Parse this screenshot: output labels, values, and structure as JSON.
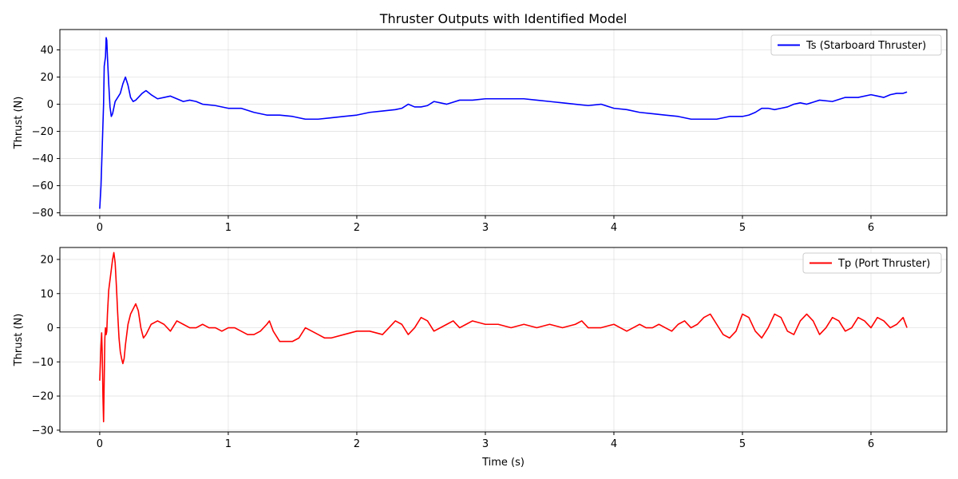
{
  "chart_data": [
    {
      "type": "line",
      "title": "Thruster Outputs with Identified Model",
      "xlabel": "",
      "ylabel": "Thrust (N)",
      "xlim": [
        -0.31,
        6.59
      ],
      "ylim": [
        -82,
        55
      ],
      "xticks": [
        0,
        1,
        2,
        3,
        4,
        5,
        6
      ],
      "yticks": [
        -80,
        -60,
        -40,
        -20,
        0,
        20,
        40
      ],
      "grid": true,
      "legend_position": "top-right",
      "series": [
        {
          "name": "Ts (Starboard Thruster)",
          "color": "#0000ff",
          "points": [
            [
              0.0,
              -77
            ],
            [
              0.01,
              -60
            ],
            [
              0.02,
              -30
            ],
            [
              0.03,
              0
            ],
            [
              0.035,
              28
            ],
            [
              0.045,
              35
            ],
            [
              0.05,
              49
            ],
            [
              0.055,
              47
            ],
            [
              0.06,
              35
            ],
            [
              0.07,
              15
            ],
            [
              0.08,
              -2
            ],
            [
              0.09,
              -9
            ],
            [
              0.1,
              -7
            ],
            [
              0.12,
              2
            ],
            [
              0.14,
              5
            ],
            [
              0.16,
              8
            ],
            [
              0.18,
              15
            ],
            [
              0.2,
              20
            ],
            [
              0.22,
              14
            ],
            [
              0.24,
              5
            ],
            [
              0.26,
              2
            ],
            [
              0.28,
              3
            ],
            [
              0.3,
              5
            ],
            [
              0.33,
              8
            ],
            [
              0.36,
              10
            ],
            [
              0.4,
              7
            ],
            [
              0.45,
              4
            ],
            [
              0.5,
              5
            ],
            [
              0.55,
              6
            ],
            [
              0.6,
              4
            ],
            [
              0.65,
              2
            ],
            [
              0.7,
              3
            ],
            [
              0.75,
              2
            ],
            [
              0.8,
              0
            ],
            [
              0.9,
              -1
            ],
            [
              1.0,
              -3
            ],
            [
              1.1,
              -3
            ],
            [
              1.2,
              -6
            ],
            [
              1.3,
              -8
            ],
            [
              1.4,
              -8
            ],
            [
              1.5,
              -9
            ],
            [
              1.6,
              -11
            ],
            [
              1.7,
              -11
            ],
            [
              1.8,
              -10
            ],
            [
              1.9,
              -9
            ],
            [
              2.0,
              -8
            ],
            [
              2.1,
              -6
            ],
            [
              2.2,
              -5
            ],
            [
              2.3,
              -4
            ],
            [
              2.35,
              -3
            ],
            [
              2.4,
              0
            ],
            [
              2.45,
              -2
            ],
            [
              2.5,
              -2
            ],
            [
              2.55,
              -1
            ],
            [
              2.6,
              2
            ],
            [
              2.65,
              1
            ],
            [
              2.7,
              0
            ],
            [
              2.8,
              3
            ],
            [
              2.9,
              3
            ],
            [
              3.0,
              4
            ],
            [
              3.1,
              4
            ],
            [
              3.2,
              4
            ],
            [
              3.3,
              4
            ],
            [
              3.4,
              3
            ],
            [
              3.5,
              2
            ],
            [
              3.6,
              1
            ],
            [
              3.7,
              0
            ],
            [
              3.8,
              -1
            ],
            [
              3.9,
              0
            ],
            [
              4.0,
              -3
            ],
            [
              4.1,
              -4
            ],
            [
              4.2,
              -6
            ],
            [
              4.3,
              -7
            ],
            [
              4.4,
              -8
            ],
            [
              4.5,
              -9
            ],
            [
              4.6,
              -11
            ],
            [
              4.7,
              -11
            ],
            [
              4.8,
              -11
            ],
            [
              4.9,
              -9
            ],
            [
              5.0,
              -9
            ],
            [
              5.05,
              -8
            ],
            [
              5.1,
              -6
            ],
            [
              5.15,
              -3
            ],
            [
              5.2,
              -3
            ],
            [
              5.25,
              -4
            ],
            [
              5.3,
              -3
            ],
            [
              5.35,
              -2
            ],
            [
              5.4,
              0
            ],
            [
              5.45,
              1
            ],
            [
              5.5,
              0
            ],
            [
              5.6,
              3
            ],
            [
              5.7,
              2
            ],
            [
              5.8,
              5
            ],
            [
              5.9,
              5
            ],
            [
              6.0,
              7
            ],
            [
              6.05,
              6
            ],
            [
              6.1,
              5
            ],
            [
              6.15,
              7
            ],
            [
              6.2,
              8
            ],
            [
              6.25,
              8
            ],
            [
              6.28,
              9
            ]
          ]
        }
      ]
    },
    {
      "type": "line",
      "title": "",
      "xlabel": "Time (s)",
      "ylabel": "Thrust (N)",
      "xlim": [
        -0.31,
        6.59
      ],
      "ylim": [
        -30.5,
        23.5
      ],
      "xticks": [
        0,
        1,
        2,
        3,
        4,
        5,
        6
      ],
      "yticks": [
        -30,
        -20,
        -10,
        0,
        10,
        20
      ],
      "grid": true,
      "legend_position": "top-right",
      "series": [
        {
          "name": "Tp (Port Thruster)",
          "color": "#ff0000",
          "points": [
            [
              0.0,
              -15.5
            ],
            [
              0.01,
              -5
            ],
            [
              0.015,
              -1.5
            ],
            [
              0.02,
              -8
            ],
            [
              0.025,
              -20
            ],
            [
              0.03,
              -27.5
            ],
            [
              0.035,
              -15
            ],
            [
              0.04,
              -3
            ],
            [
              0.045,
              0
            ],
            [
              0.05,
              -2
            ],
            [
              0.055,
              -1
            ],
            [
              0.06,
              4
            ],
            [
              0.07,
              11
            ],
            [
              0.08,
              14
            ],
            [
              0.09,
              17
            ],
            [
              0.1,
              20
            ],
            [
              0.11,
              22
            ],
            [
              0.12,
              19
            ],
            [
              0.13,
              12
            ],
            [
              0.14,
              4
            ],
            [
              0.15,
              -3
            ],
            [
              0.16,
              -7
            ],
            [
              0.17,
              -9
            ],
            [
              0.18,
              -10.5
            ],
            [
              0.19,
              -9
            ],
            [
              0.2,
              -5
            ],
            [
              0.22,
              1
            ],
            [
              0.24,
              4
            ],
            [
              0.26,
              5.5
            ],
            [
              0.28,
              7
            ],
            [
              0.3,
              5
            ],
            [
              0.32,
              0
            ],
            [
              0.34,
              -3
            ],
            [
              0.36,
              -2
            ],
            [
              0.4,
              1
            ],
            [
              0.45,
              2
            ],
            [
              0.5,
              1
            ],
            [
              0.55,
              -1
            ],
            [
              0.6,
              2
            ],
            [
              0.65,
              1
            ],
            [
              0.7,
              0
            ],
            [
              0.75,
              0
            ],
            [
              0.8,
              1
            ],
            [
              0.85,
              0
            ],
            [
              0.9,
              0
            ],
            [
              0.95,
              -1
            ],
            [
              1.0,
              0
            ],
            [
              1.05,
              0
            ],
            [
              1.1,
              -1
            ],
            [
              1.15,
              -2
            ],
            [
              1.2,
              -2
            ],
            [
              1.25,
              -1
            ],
            [
              1.3,
              1
            ],
            [
              1.32,
              2
            ],
            [
              1.35,
              -1
            ],
            [
              1.4,
              -4
            ],
            [
              1.5,
              -4
            ],
            [
              1.55,
              -3
            ],
            [
              1.6,
              0
            ],
            [
              1.65,
              -1
            ],
            [
              1.7,
              -2
            ],
            [
              1.75,
              -3
            ],
            [
              1.8,
              -3
            ],
            [
              1.9,
              -2
            ],
            [
              2.0,
              -1
            ],
            [
              2.1,
              -1
            ],
            [
              2.2,
              -2
            ],
            [
              2.25,
              0
            ],
            [
              2.3,
              2
            ],
            [
              2.35,
              1
            ],
            [
              2.4,
              -2
            ],
            [
              2.45,
              0
            ],
            [
              2.5,
              3
            ],
            [
              2.55,
              2
            ],
            [
              2.6,
              -1
            ],
            [
              2.7,
              1
            ],
            [
              2.75,
              2
            ],
            [
              2.8,
              0
            ],
            [
              2.85,
              1
            ],
            [
              2.9,
              2
            ],
            [
              3.0,
              1
            ],
            [
              3.1,
              1
            ],
            [
              3.2,
              0
            ],
            [
              3.3,
              1
            ],
            [
              3.4,
              0
            ],
            [
              3.5,
              1
            ],
            [
              3.6,
              0
            ],
            [
              3.7,
              1
            ],
            [
              3.75,
              2
            ],
            [
              3.8,
              0
            ],
            [
              3.9,
              0
            ],
            [
              4.0,
              1
            ],
            [
              4.05,
              0
            ],
            [
              4.1,
              -1
            ],
            [
              4.15,
              0
            ],
            [
              4.2,
              1
            ],
            [
              4.25,
              0
            ],
            [
              4.3,
              0
            ],
            [
              4.35,
              1
            ],
            [
              4.4,
              0
            ],
            [
              4.45,
              -1
            ],
            [
              4.5,
              1
            ],
            [
              4.55,
              2
            ],
            [
              4.6,
              0
            ],
            [
              4.65,
              1
            ],
            [
              4.7,
              3
            ],
            [
              4.75,
              4
            ],
            [
              4.8,
              1
            ],
            [
              4.85,
              -2
            ],
            [
              4.9,
              -3
            ],
            [
              4.95,
              -1
            ],
            [
              5.0,
              4
            ],
            [
              5.05,
              3
            ],
            [
              5.1,
              -1
            ],
            [
              5.15,
              -3
            ],
            [
              5.2,
              0
            ],
            [
              5.25,
              4
            ],
            [
              5.3,
              3
            ],
            [
              5.35,
              -1
            ],
            [
              5.4,
              -2
            ],
            [
              5.45,
              2
            ],
            [
              5.5,
              4
            ],
            [
              5.55,
              2
            ],
            [
              5.6,
              -2
            ],
            [
              5.65,
              0
            ],
            [
              5.7,
              3
            ],
            [
              5.75,
              2
            ],
            [
              5.8,
              -1
            ],
            [
              5.85,
              0
            ],
            [
              5.9,
              3
            ],
            [
              5.95,
              2
            ],
            [
              6.0,
              0
            ],
            [
              6.05,
              3
            ],
            [
              6.1,
              2
            ],
            [
              6.15,
              0
            ],
            [
              6.2,
              1
            ],
            [
              6.25,
              3
            ],
            [
              6.28,
              0
            ]
          ]
        }
      ]
    }
  ]
}
